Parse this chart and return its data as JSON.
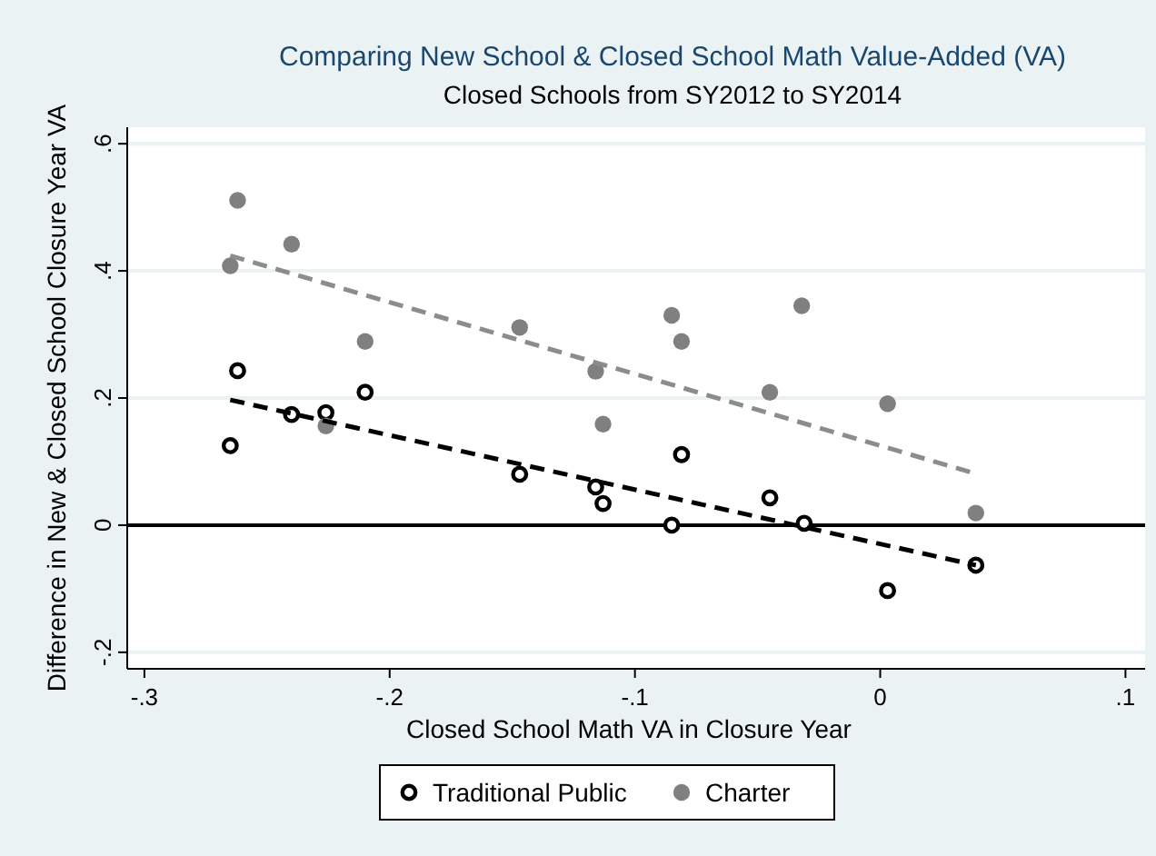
{
  "chart_data": {
    "type": "scatter",
    "title": "Comparing New School & Closed School Math Value-Added (VA)",
    "subtitle": "Closed Schools from SY2012 to SY2014",
    "xlabel": "Closed School Math VA in Closure Year",
    "ylabel": "Difference in New & Closed School Closure Year VA",
    "xlim": [
      -0.307,
      0.108
    ],
    "ylim": [
      -0.226,
      0.626
    ],
    "xticks": [
      {
        "value": -0.3,
        "label": "-.3"
      },
      {
        "value": -0.2,
        "label": "-.2"
      },
      {
        "value": -0.1,
        "label": "-.1"
      },
      0,
      {
        "value": 0.1,
        "label": ".1"
      }
    ],
    "yticks": [
      {
        "value": -0.2,
        "label": "-.2"
      },
      0,
      {
        "value": 0.2,
        "label": ".2"
      },
      {
        "value": 0.4,
        "label": ".4"
      },
      {
        "value": 0.6,
        "label": ".6"
      }
    ],
    "grid": "y",
    "legend": "bottom",
    "marker": "circle",
    "ref_lines": [
      {
        "axis": "y",
        "value": 0,
        "color": "#000000"
      }
    ],
    "series": [
      {
        "name": "Traditional Public",
        "color": "#000000",
        "x": [
          -0.265,
          -0.262,
          -0.24,
          -0.226,
          -0.21,
          -0.147,
          -0.116,
          -0.113,
          -0.085,
          -0.081,
          -0.045,
          -0.031,
          0.003,
          0.039
        ],
        "values": [
          0.125,
          0.243,
          0.174,
          0.177,
          0.209,
          0.08,
          0.06,
          0.034,
          0.0,
          0.111,
          0.043,
          0.003,
          -0.103,
          -0.063
        ]
      },
      {
        "name": "Charter",
        "color": "#808080",
        "x": [
          -0.265,
          -0.262,
          -0.24,
          -0.226,
          -0.21,
          -0.147,
          -0.116,
          -0.113,
          -0.085,
          -0.081,
          -0.045,
          -0.032,
          0.003,
          0.039
        ],
        "values": [
          0.408,
          0.511,
          0.442,
          0.156,
          0.289,
          0.311,
          0.242,
          0.159,
          0.33,
          0.289,
          0.209,
          0.345,
          0.191,
          0.019
        ]
      },
      {
        "type": "line",
        "color": "#000000",
        "line_style": "dashed",
        "marker": "none",
        "x": [
          -0.265,
          0.039
        ],
        "values": [
          0.197,
          -0.063
        ]
      },
      {
        "type": "line",
        "color": "#8c8c8c",
        "line_style": "dashed",
        "marker": "none",
        "x": [
          -0.265,
          0.039
        ],
        "values": [
          0.424,
          0.081
        ]
      }
    ]
  }
}
